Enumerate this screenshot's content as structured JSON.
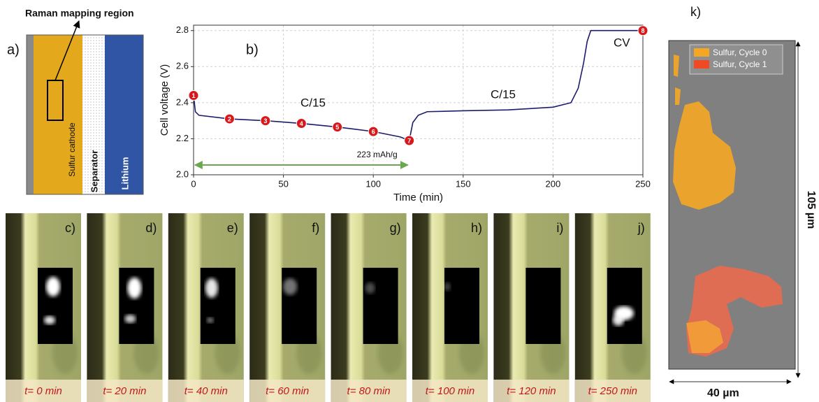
{
  "panel_a": {
    "label": "a)",
    "title": "Raman mapping region",
    "layers": [
      "Sulfur cathode",
      "Separator",
      "Lithium"
    ]
  },
  "chart_data": {
    "type": "line",
    "panel_label": "b)",
    "x_label": "Time (min)",
    "y_label": "Cell voltage (V)",
    "x": [
      0,
      1,
      3,
      20,
      40,
      60,
      80,
      100,
      115,
      120,
      122,
      125,
      130,
      150,
      175,
      200,
      210,
      214,
      217,
      219,
      221,
      250
    ],
    "series": [
      {
        "color": "#1c1c6b",
        "values": [
          2.44,
          2.35,
          2.33,
          2.31,
          2.3,
          2.285,
          2.265,
          2.24,
          2.21,
          2.19,
          2.29,
          2.33,
          2.35,
          2.355,
          2.36,
          2.375,
          2.4,
          2.48,
          2.62,
          2.74,
          2.8,
          2.8
        ]
      }
    ],
    "points": {
      "color": "#d7191c",
      "x": [
        0,
        20,
        40,
        60,
        80,
        100,
        120,
        250
      ],
      "values": [
        2.44,
        2.31,
        2.3,
        2.285,
        2.265,
        2.24,
        2.19,
        2.8
      ],
      "labels": [
        "1",
        "2",
        "3",
        "4",
        "5",
        "6",
        "7",
        "8"
      ]
    },
    "annotations": [
      "C/15",
      "C/15",
      "CV"
    ],
    "capacity_arrow": {
      "color": "#6aa84f",
      "x": [
        0,
        120
      ],
      "label": "223 mAh/g"
    },
    "xlim": [
      0,
      250
    ],
    "xticks": [
      0,
      50,
      100,
      150,
      200,
      250
    ],
    "ylim": [
      2.0,
      2.83
    ],
    "yticks": [
      {
        "value": 2,
        "label": "2.0"
      },
      2.2,
      2.4,
      2.6,
      2.8
    ],
    "grid": true
  },
  "images": [
    {
      "label": "c)",
      "caption": "t= 0 min"
    },
    {
      "label": "d)",
      "caption": "t= 20 min"
    },
    {
      "label": "e)",
      "caption": "t= 40 min"
    },
    {
      "label": "f)",
      "caption": "t= 60 min"
    },
    {
      "label": "g)",
      "caption": "t= 80 min"
    },
    {
      "label": "h)",
      "caption": "t= 100 min"
    },
    {
      "label": "i)",
      "caption": "t= 120 min"
    },
    {
      "label": "j)",
      "caption": "t= 250 min"
    }
  ],
  "panel_k": {
    "label": "k)",
    "legend": [
      {
        "name": "Sulfur, Cycle 0",
        "color": "#f5a623"
      },
      {
        "name": "Sulfur, Cycle 1",
        "color": "#f04a24"
      }
    ],
    "height": "105 µm",
    "width": "40 µm"
  }
}
